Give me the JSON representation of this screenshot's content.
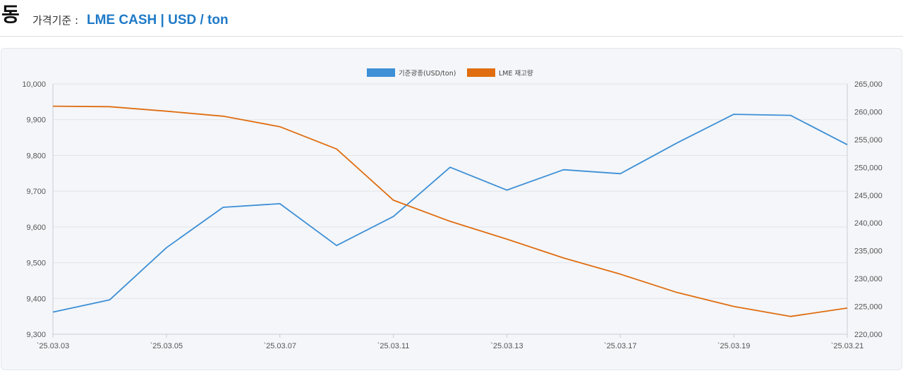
{
  "header": {
    "metal": "동",
    "price_basis_label": "가격기준 :",
    "price_basis_value": "LME CASH | USD / ton"
  },
  "chart_data": {
    "type": "line",
    "x": [
      "`25.03.03",
      "`25.03.04",
      "`25.03.05",
      "`25.03.06",
      "`25.03.07",
      "`25.03.10",
      "`25.03.11",
      "`25.03.12",
      "`25.03.13",
      "`25.03.14",
      "`25.03.17",
      "`25.03.18",
      "`25.03.19",
      "`25.03.20",
      "`25.03.21"
    ],
    "x_tick_labels": [
      "`25.03.03",
      "`25.03.05",
      "`25.03.07",
      "`25.03.11",
      "`25.03.13",
      "`25.03.17",
      "`25.03.19",
      "`25.03.21"
    ],
    "series": [
      {
        "name": "기준광종(USD/ton)",
        "axis": "left",
        "color": "#3d8fd6",
        "values": [
          9362,
          9396,
          9542,
          9655,
          9665,
          9548,
          9629,
          9767,
          9703,
          9760,
          9749,
          9835,
          9915,
          9912,
          9830
        ]
      },
      {
        "name": "LME 재고량",
        "axis": "right",
        "color": "#e06d10",
        "values": [
          261000,
          260900,
          260100,
          259200,
          257300,
          253300,
          244100,
          240300,
          237100,
          233700,
          230800,
          227500,
          225000,
          223200,
          224700
        ]
      }
    ],
    "y_left": {
      "range": [
        9300,
        10000
      ],
      "ticks": [
        "9,300",
        "9,400",
        "9,500",
        "9,600",
        "9,700",
        "9,800",
        "9,900",
        "10,000"
      ]
    },
    "y_right": {
      "range": [
        220000,
        265000
      ],
      "ticks": [
        "220,000",
        "225,000",
        "230,000",
        "235,000",
        "240,000",
        "245,000",
        "250,000",
        "255,000",
        "260,000",
        "265,000"
      ]
    },
    "grid": true,
    "legend_position": "top-center"
  }
}
